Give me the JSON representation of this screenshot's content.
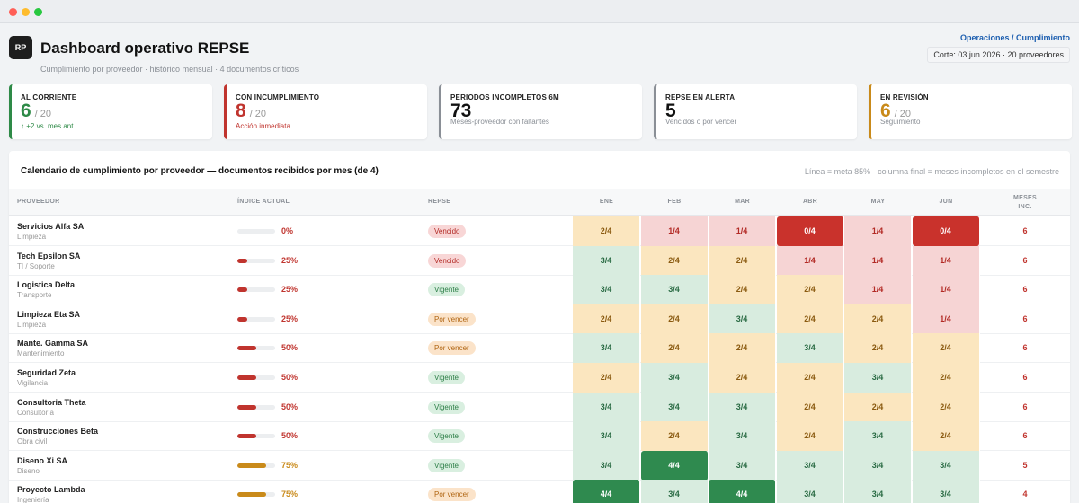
{
  "app": {
    "logo": "RP",
    "title": "Dashboard operativo REPSE",
    "subtitle": "Cumplimiento por proveedor · histórico mensual · 4 documentos críticos"
  },
  "breadcrumb": "Operaciones / Cumplimiento",
  "cutoff": "Corte: 03 jun 2026 · 20  proveedores",
  "kpis": [
    {
      "label": "AL CORRIENTE",
      "value": "6",
      "of": "/ 20",
      "note": "↑ +2 vs. mes ant.",
      "color": "#2e8a47",
      "note_color": "#2e8a47"
    },
    {
      "label": "CON INCUMPLIMIENTO",
      "value": "8",
      "of": "/ 20",
      "note": "Acción inmediata",
      "color": "#c0342e",
      "note_color": "#c0342e"
    },
    {
      "label": "PERIODOS INCOMPLETOS 6M",
      "value": "73",
      "of": "",
      "note": "Meses-proveedor con faltantes",
      "color": "#8a8f96",
      "note_color": "#8a8f96"
    },
    {
      "label": "REPSE EN ALERTA",
      "value": "5",
      "of": "",
      "note": "Vencidos o por vencer",
      "color": "#8a8f96",
      "note_color": "#8a8f96"
    },
    {
      "label": "EN REVISIÓN",
      "value": "6",
      "of": "/ 20",
      "note": "Seguimiento",
      "color": "#c98a1a",
      "note_color": "#8a8f96"
    }
  ],
  "panel": {
    "title": "Calendario de cumplimiento por proveedor — documentos recibidos por mes (de 4)",
    "note": "Línea = meta 85% · columna final = meses incompletos en el semestre"
  },
  "columns": {
    "proveedor": "PROVEEDOR",
    "indice": "ÍNDICE ACTUAL",
    "repse": "REPSE",
    "months": [
      "ENE",
      "FEB",
      "MAR",
      "ABR",
      "MAY",
      "JUN"
    ],
    "inc_1": "MESES",
    "inc_2": "INC."
  },
  "rows": [
    {
      "name": "Servicios Alfa SA",
      "cat": "Limpieza",
      "pct": 0,
      "pct_label": "0%",
      "repse": "Vencido",
      "months": [
        "2/4",
        "1/4",
        "1/4",
        "0/4",
        "1/4",
        "0/4"
      ],
      "inc": "6"
    },
    {
      "name": "Tech Epsilon SA",
      "cat": "TI / Soporte",
      "pct": 25,
      "pct_label": "25%",
      "repse": "Vencido",
      "months": [
        "3/4",
        "2/4",
        "2/4",
        "1/4",
        "1/4",
        "1/4"
      ],
      "inc": "6"
    },
    {
      "name": "Logistica Delta",
      "cat": "Transporte",
      "pct": 25,
      "pct_label": "25%",
      "repse": "Vigente",
      "months": [
        "3/4",
        "3/4",
        "2/4",
        "2/4",
        "1/4",
        "1/4"
      ],
      "inc": "6"
    },
    {
      "name": "Limpieza Eta SA",
      "cat": "Limpieza",
      "pct": 25,
      "pct_label": "25%",
      "repse": "Por vencer",
      "months": [
        "2/4",
        "2/4",
        "3/4",
        "2/4",
        "2/4",
        "1/4"
      ],
      "inc": "6"
    },
    {
      "name": "Mante. Gamma SA",
      "cat": "Mantenimiento",
      "pct": 50,
      "pct_label": "50%",
      "repse": "Por vencer",
      "months": [
        "3/4",
        "2/4",
        "2/4",
        "3/4",
        "2/4",
        "2/4"
      ],
      "inc": "6"
    },
    {
      "name": "Seguridad Zeta",
      "cat": "Vigilancia",
      "pct": 50,
      "pct_label": "50%",
      "repse": "Vigente",
      "months": [
        "2/4",
        "3/4",
        "2/4",
        "2/4",
        "3/4",
        "2/4"
      ],
      "inc": "6"
    },
    {
      "name": "Consultoria Theta",
      "cat": "Consultoría",
      "pct": 50,
      "pct_label": "50%",
      "repse": "Vigente",
      "months": [
        "3/4",
        "3/4",
        "3/4",
        "2/4",
        "2/4",
        "2/4"
      ],
      "inc": "6"
    },
    {
      "name": "Construcciones Beta",
      "cat": "Obra civil",
      "pct": 50,
      "pct_label": "50%",
      "repse": "Vigente",
      "months": [
        "3/4",
        "2/4",
        "3/4",
        "2/4",
        "3/4",
        "2/4"
      ],
      "inc": "6"
    },
    {
      "name": "Diseno Xi SA",
      "cat": "Diseno",
      "pct": 75,
      "pct_label": "75%",
      "repse": "Vigente",
      "months": [
        "3/4",
        "4/4",
        "3/4",
        "3/4",
        "3/4",
        "3/4"
      ],
      "inc": "5"
    },
    {
      "name": "Proyecto Lambda",
      "cat": "Ingeniería",
      "pct": 75,
      "pct_label": "75%",
      "repse": "Por vencer",
      "months": [
        "4/4",
        "3/4",
        "4/4",
        "3/4",
        "3/4",
        "3/4"
      ],
      "inc": "4"
    }
  ],
  "colors": {
    "m0": "#c9322c",
    "m1": "#f6d4d4",
    "m2": "#fbe6bf",
    "m3": "#d8ecdf",
    "m4": "#2f8a4f",
    "bar_low": "#c0342e",
    "bar_mid": "#c98a1a"
  }
}
